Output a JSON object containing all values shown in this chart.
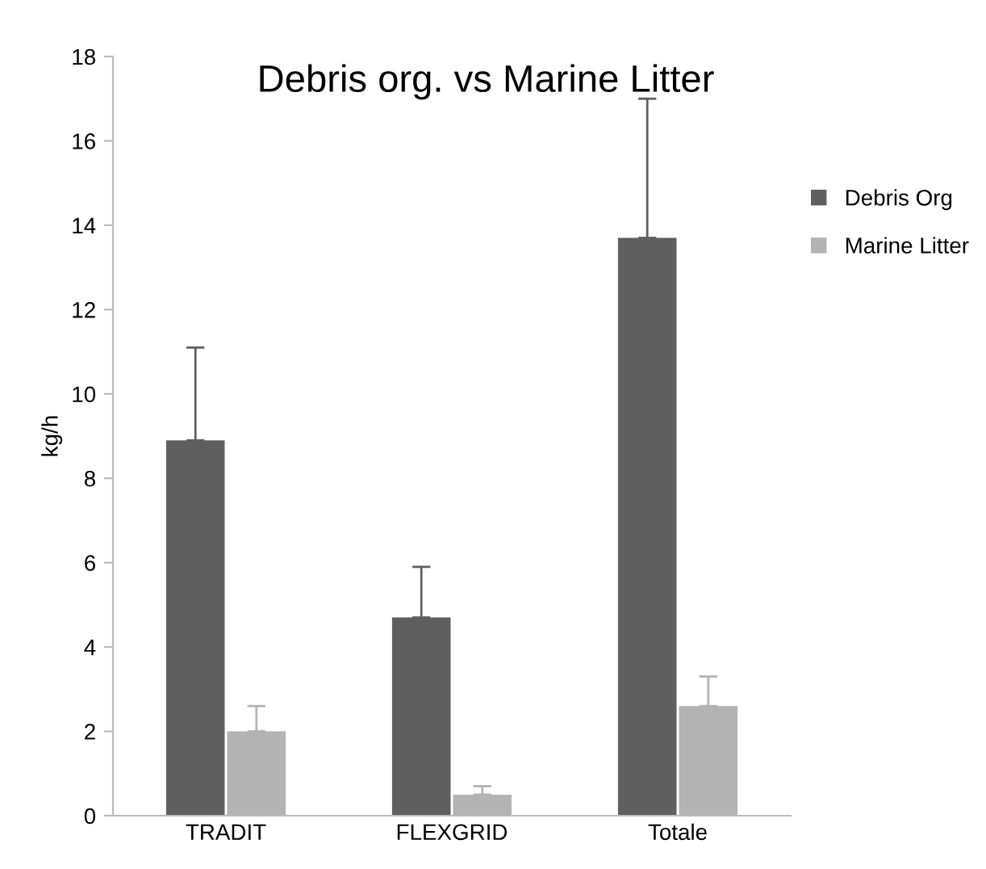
{
  "chart_data": {
    "type": "bar",
    "title": "Debris org. vs Marine Litter",
    "ylabel": "kg/h",
    "categories": [
      "TRADIT",
      "FLEXGRID",
      "Totale"
    ],
    "series": [
      {
        "name": "Debris Org",
        "color": "#5f5f5f",
        "values": [
          8.9,
          4.7,
          13.7
        ],
        "errors": [
          [
            8.9,
            11.1
          ],
          [
            4.7,
            5.9
          ],
          [
            13.7,
            17.0
          ]
        ]
      },
      {
        "name": "Marine Litter",
        "color": "#b3b3b3",
        "values": [
          2.0,
          0.5,
          2.6
        ],
        "errors": [
          [
            2.0,
            2.6
          ],
          [
            0.5,
            0.7
          ],
          [
            2.6,
            3.3
          ]
        ]
      }
    ],
    "ylim": [
      0,
      18
    ],
    "yticks": [
      0,
      2,
      4,
      6,
      8,
      10,
      12,
      14,
      16,
      18
    ],
    "grid": false,
    "legend": "right"
  }
}
